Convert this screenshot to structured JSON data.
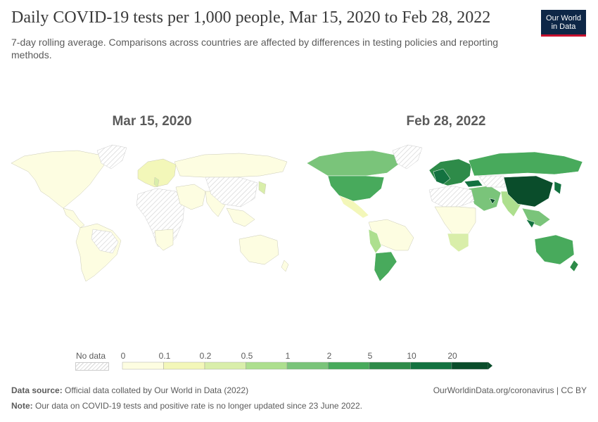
{
  "header": {
    "title": "Daily COVID-19 tests per 1,000 people, Mar 15, 2020 to Feb 28, 2022",
    "subtitle": "7-day rolling average. Comparisons across countries are affected by differences in testing policies and reporting methods."
  },
  "logo": {
    "line1": "Our World",
    "line2": "in Data",
    "bg": "#0e2747",
    "accent": "#c8102e"
  },
  "panels": [
    {
      "date": "Mar 15, 2020"
    },
    {
      "date": "Feb 28, 2022"
    }
  ],
  "legend": {
    "no_data_label": "No data",
    "ticks": [
      "0",
      "0.1",
      "0.2",
      "0.5",
      "1",
      "2",
      "5",
      "10",
      "20"
    ],
    "colors": [
      "#fdfde1",
      "#f3f7b9",
      "#d9eeaa",
      "#addf8e",
      "#7ac47a",
      "#48aa5c",
      "#2e8b49",
      "#137240",
      "#0a4d2b"
    ]
  },
  "footer": {
    "source_label": "Data source:",
    "source_text": "Official data collated by Our World in Data (2022)",
    "link": "OurWorldinData.org/coronavirus | CC BY",
    "note_label": "Note:",
    "note_text": "Our data on COVID-19 tests and positive rate is no longer updated since 23 June 2022."
  }
}
